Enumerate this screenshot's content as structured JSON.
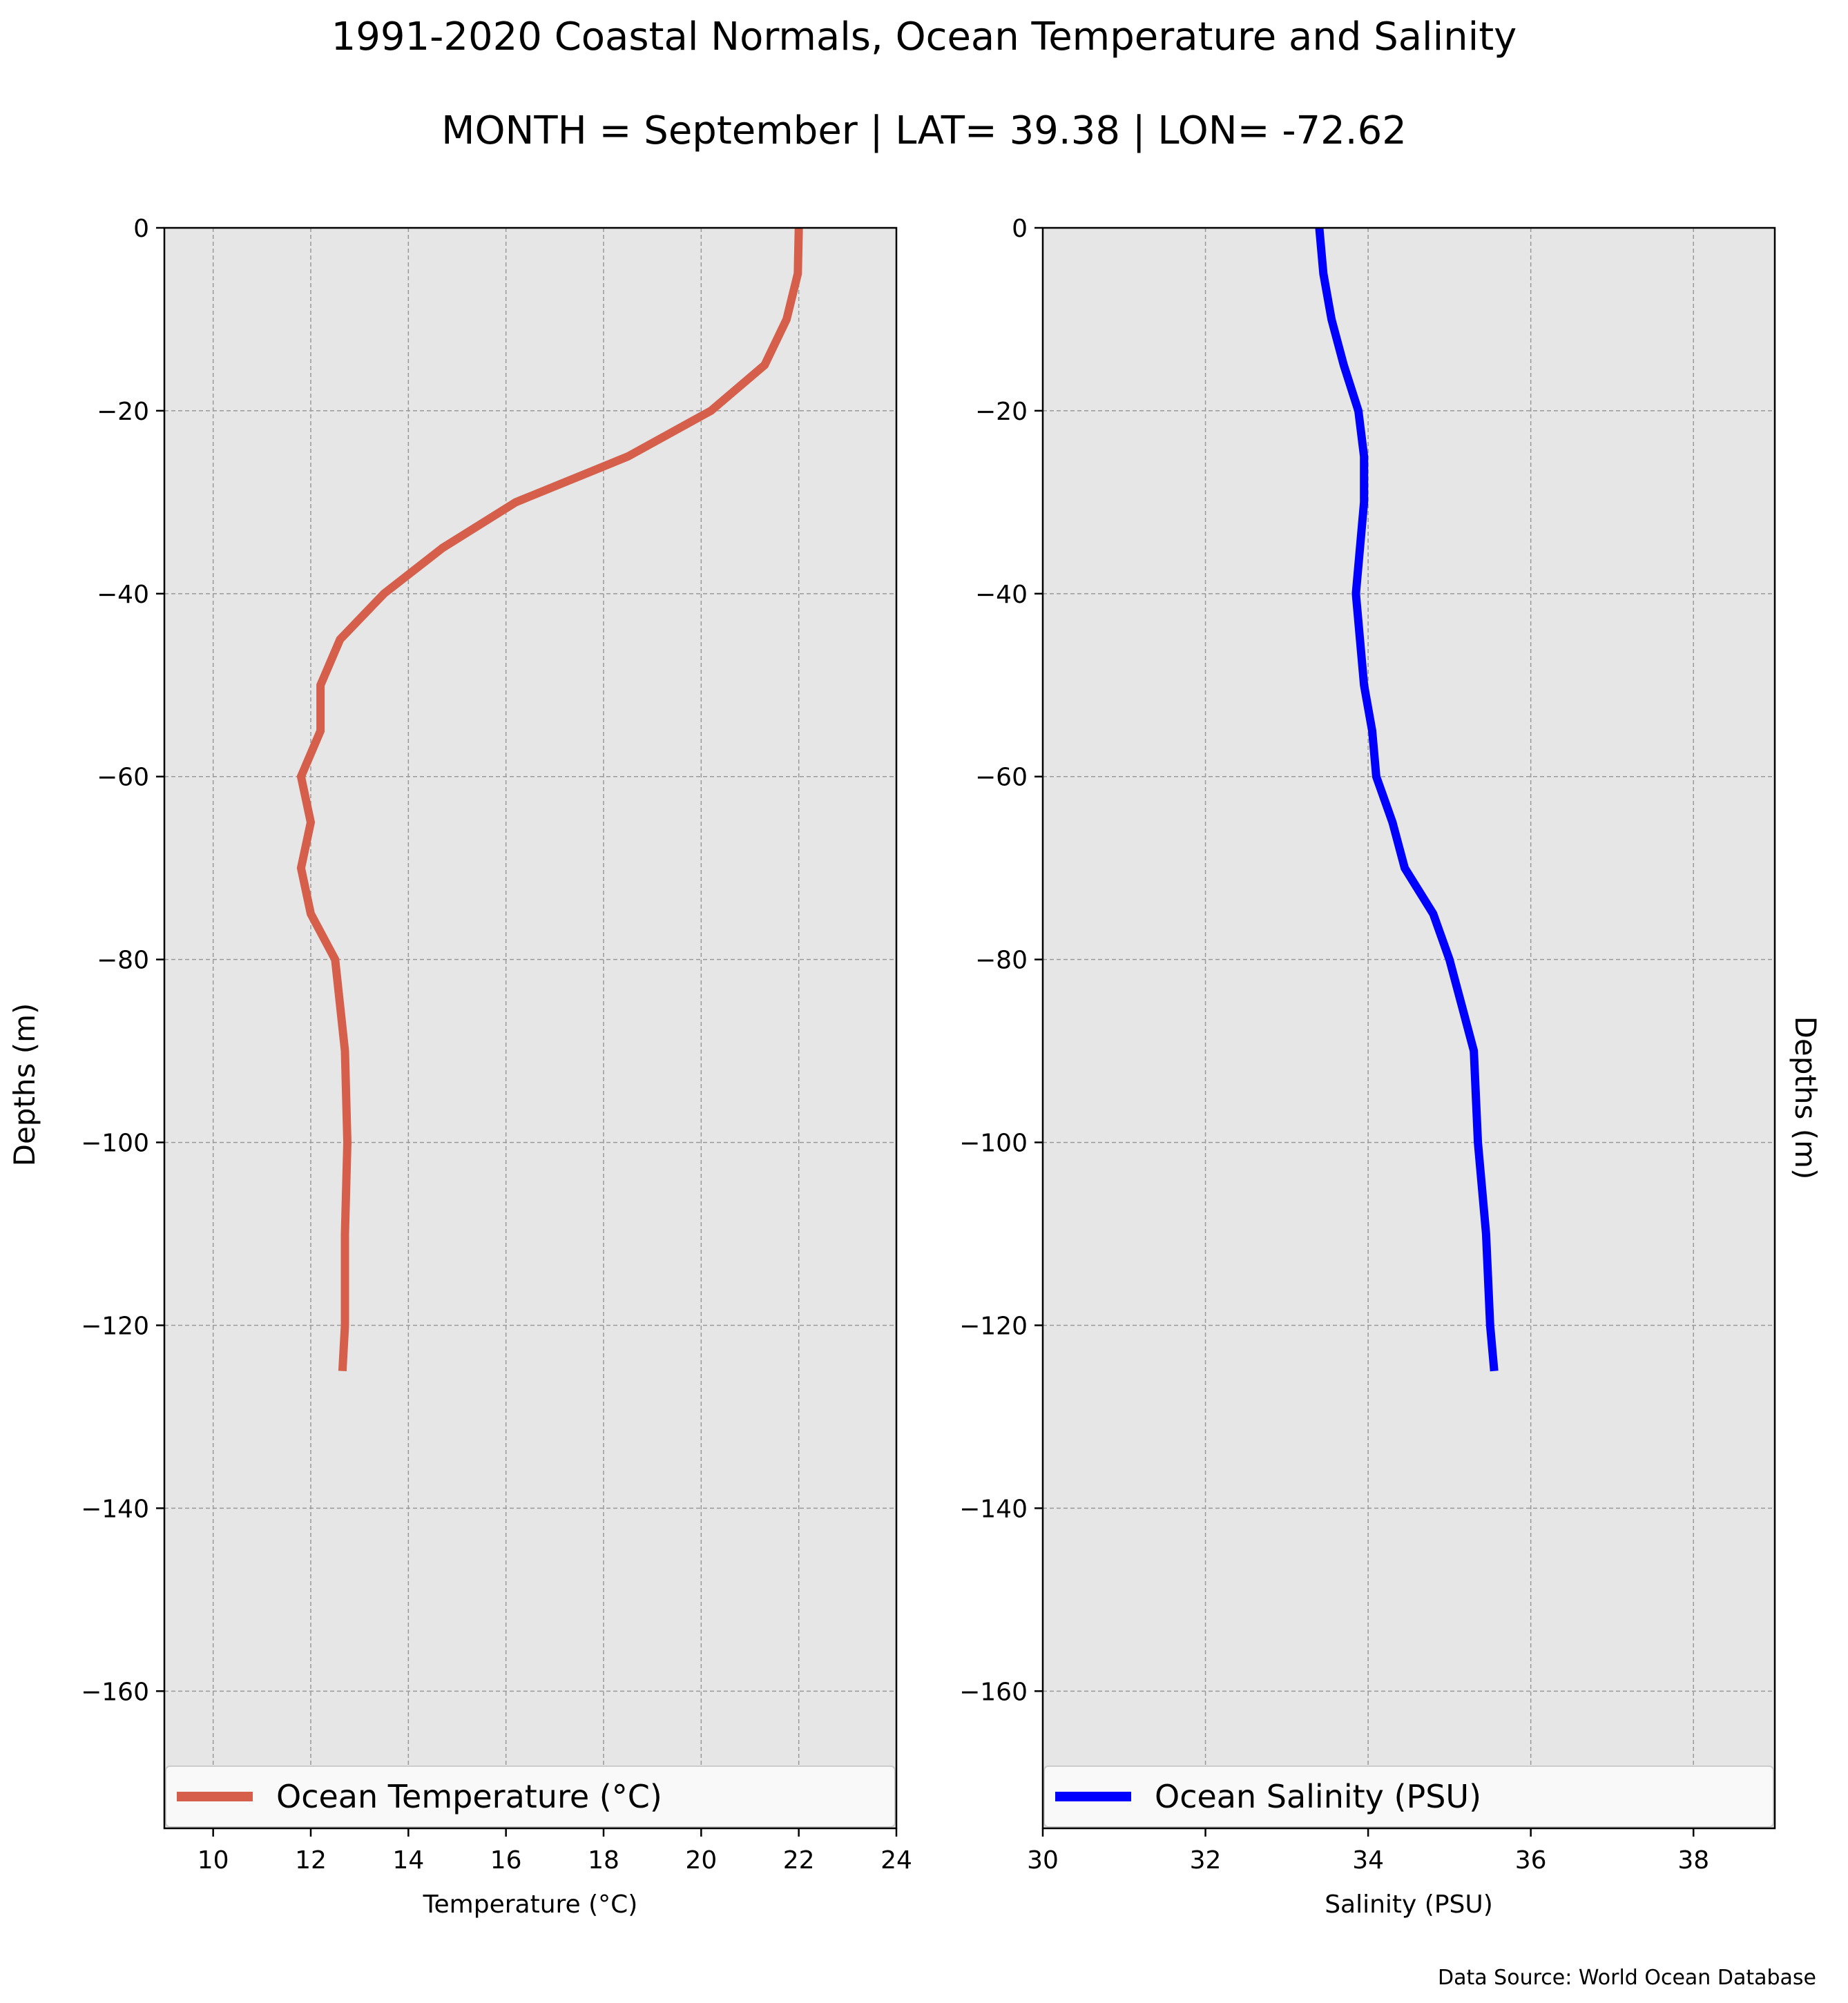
{
  "figure": {
    "title": "1991-2020 Coastal Normals, Ocean Temperature and Salinity",
    "subtitle": "MONTH = September | LAT= 39.38 | LON= -72.62",
    "source": "Data Source: World Ocean Database",
    "background": "#ffffff",
    "axes_background": "#e6e6e6",
    "grid_color": "#999999"
  },
  "chart_data": [
    {
      "type": "line",
      "xlabel": "Temperature (°C)",
      "ylabel": "Depths (m)",
      "xlim": [
        9,
        24
      ],
      "ylim": [
        -175,
        0
      ],
      "xticks": [
        10,
        12,
        14,
        16,
        18,
        20,
        22,
        24
      ],
      "yticks": [
        0,
        -20,
        -40,
        -60,
        -80,
        -100,
        -120,
        -140,
        -160
      ],
      "ytick_labels": [
        "0",
        "−20",
        "−40",
        "−60",
        "−80",
        "−100",
        "−120",
        "−140",
        "−160"
      ],
      "grid": true,
      "legend": "bottom",
      "series": [
        {
          "name": "Ocean Temperature (°C)",
          "color": "#d65f4c",
          "x": [
            22.0,
            21.98,
            21.75,
            21.3,
            20.2,
            18.5,
            16.2,
            14.7,
            13.5,
            12.6,
            12.2,
            12.2,
            11.8,
            12.0,
            11.8,
            12.0,
            12.5,
            12.6,
            12.7,
            12.75,
            12.7,
            12.7,
            12.65
          ],
          "y": [
            0,
            -5,
            -10,
            -15,
            -20,
            -25,
            -30,
            -35,
            -40,
            -45,
            -50,
            -55,
            -60,
            -65,
            -70,
            -75,
            -80,
            -85,
            -90,
            -100,
            -110,
            -120,
            -125
          ]
        }
      ]
    },
    {
      "type": "line",
      "xlabel": "Salinity (PSU)",
      "ylabel": "Depths (m)",
      "xlim": [
        30,
        39
      ],
      "ylim": [
        -175,
        0
      ],
      "xticks": [
        30,
        32,
        34,
        36,
        38
      ],
      "yticks": [
        0,
        -20,
        -40,
        -60,
        -80,
        -100,
        -120,
        -140,
        -160
      ],
      "ytick_labels": [
        "0",
        "−20",
        "−40",
        "−60",
        "−80",
        "−100",
        "−120",
        "−140",
        "−160"
      ],
      "grid": true,
      "legend": "bottom",
      "series": [
        {
          "name": "Ocean Salinity (PSU)",
          "color": "#0000ff",
          "x": [
            33.4,
            33.45,
            33.55,
            33.7,
            33.88,
            33.95,
            33.95,
            33.9,
            33.85,
            33.9,
            33.95,
            34.05,
            34.1,
            34.3,
            34.45,
            34.8,
            35.0,
            35.15,
            35.3,
            35.35,
            35.45,
            35.5,
            35.55
          ],
          "y": [
            0,
            -5,
            -10,
            -15,
            -20,
            -25,
            -30,
            -35,
            -40,
            -45,
            -50,
            -55,
            -60,
            -65,
            -70,
            -75,
            -80,
            -85,
            -90,
            -100,
            -110,
            -120,
            -125
          ]
        }
      ]
    }
  ]
}
